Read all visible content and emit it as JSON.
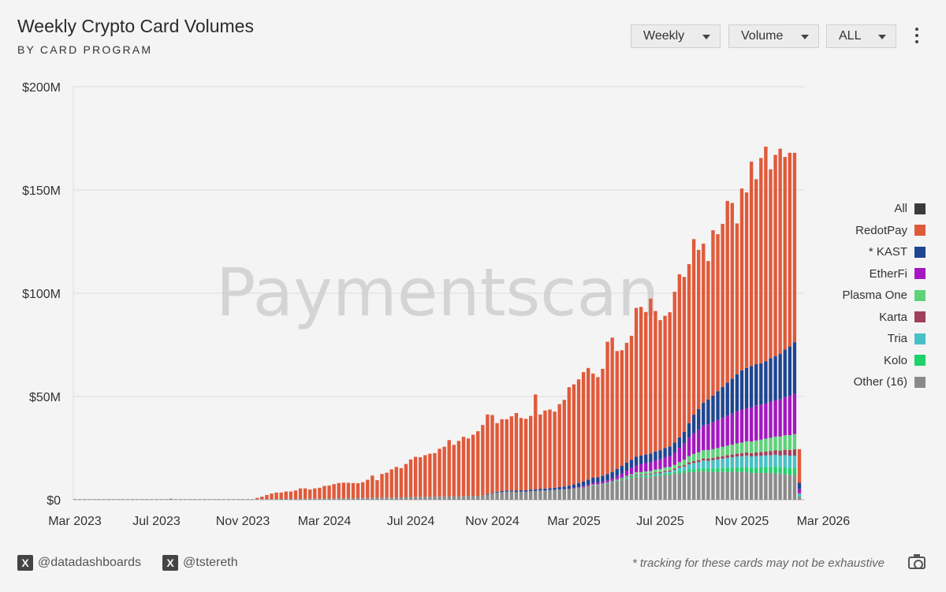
{
  "header": {
    "title": "Weekly Crypto Card Volumes",
    "subtitle": "BY CARD PROGRAM"
  },
  "controls": {
    "interval": "Weekly",
    "metric": "Volume",
    "range": "ALL"
  },
  "watermark": "Paymentscan",
  "footer": {
    "handle1": "@datadashboards",
    "handle2": "@tstereth",
    "note": "* tracking for these cards may not be exhaustive"
  },
  "chart_data": {
    "type": "bar",
    "stacked": true,
    "title": "Weekly Crypto Card Volumes",
    "subtitle": "BY CARD PROGRAM",
    "xlabel": "",
    "ylabel": "",
    "ylim": [
      0,
      200
    ],
    "y_unit": "$M",
    "yticks": [
      0,
      50,
      100,
      150,
      200
    ],
    "ytick_labels": [
      "$0",
      "$50M",
      "$100M",
      "$150M",
      "$200M"
    ],
    "xtick_labels": [
      "Mar 2023",
      "Jul 2023",
      "Nov 2023",
      "Mar 2024",
      "Jul 2024",
      "Nov 2024",
      "Mar 2025",
      "Jul 2025",
      "Nov 2025",
      "Mar 2026"
    ],
    "xtick_week_index": [
      0,
      17,
      35,
      52,
      70,
      87,
      104,
      122,
      139,
      156
    ],
    "grid": "horizontal",
    "legend_position": "right",
    "legend": [
      {
        "name": "All",
        "color": "#3a3a3a"
      },
      {
        "name": "RedotPay",
        "color": "#e05a3a"
      },
      {
        "name": "* KAST",
        "color": "#1f4591"
      },
      {
        "name": "EtherFi",
        "color": "#a417c0"
      },
      {
        "name": "Plasma One",
        "color": "#5fd27a"
      },
      {
        "name": "Karta",
        "color": "#a0405a"
      },
      {
        "name": "Tria",
        "color": "#47c1c6"
      },
      {
        "name": "Kolo",
        "color": "#1ed16a"
      },
      {
        "name": "Other (16)",
        "color": "#8a8a8a"
      }
    ],
    "series_order": [
      "Other (16)",
      "Kolo",
      "Tria",
      "Karta",
      "Plasma One",
      "EtherFi",
      "* KAST",
      "RedotPay"
    ],
    "series_colors": [
      "#8a8a8a",
      "#1ed16a",
      "#47c1c6",
      "#a0405a",
      "#5fd27a",
      "#a417c0",
      "#1f4591",
      "#e05a3a"
    ],
    "weeks": [
      [
        0.3,
        0,
        0,
        0,
        0,
        0,
        0,
        0
      ],
      [
        0.3,
        0,
        0,
        0,
        0,
        0,
        0,
        0
      ],
      [
        0.3,
        0,
        0,
        0,
        0,
        0,
        0,
        0
      ],
      [
        0.3,
        0,
        0,
        0,
        0,
        0,
        0,
        0
      ],
      [
        0.3,
        0,
        0,
        0,
        0,
        0,
        0,
        0
      ],
      [
        0.3,
        0,
        0,
        0,
        0,
        0,
        0,
        0
      ],
      [
        0.3,
        0,
        0,
        0,
        0,
        0,
        0,
        0
      ],
      [
        0.3,
        0,
        0,
        0,
        0,
        0,
        0,
        0
      ],
      [
        0.3,
        0,
        0,
        0,
        0,
        0,
        0,
        0
      ],
      [
        0.3,
        0,
        0,
        0,
        0,
        0,
        0,
        0
      ],
      [
        0.3,
        0,
        0,
        0,
        0,
        0,
        0,
        0
      ],
      [
        0.3,
        0,
        0,
        0,
        0,
        0,
        0,
        0
      ],
      [
        0.3,
        0,
        0,
        0,
        0,
        0,
        0,
        0
      ],
      [
        0.3,
        0,
        0,
        0,
        0,
        0,
        0,
        0
      ],
      [
        0.3,
        0,
        0,
        0,
        0,
        0,
        0,
        0
      ],
      [
        0.3,
        0,
        0,
        0,
        0,
        0,
        0,
        0
      ],
      [
        0.3,
        0,
        0,
        0,
        0,
        0,
        0,
        0
      ],
      [
        0.3,
        0,
        0,
        0,
        0,
        0,
        0,
        0
      ],
      [
        0.3,
        0,
        0,
        0,
        0,
        0,
        0,
        0
      ],
      [
        0.3,
        0,
        0,
        0,
        0,
        0,
        0,
        0
      ],
      [
        0.5,
        0,
        0,
        0,
        0,
        0,
        0,
        0
      ],
      [
        0.3,
        0,
        0,
        0,
        0,
        0,
        0,
        0
      ],
      [
        0.3,
        0,
        0,
        0,
        0,
        0,
        0,
        0
      ],
      [
        0.3,
        0,
        0,
        0,
        0,
        0,
        0,
        0
      ],
      [
        0.3,
        0,
        0,
        0,
        0,
        0,
        0,
        0
      ],
      [
        0.3,
        0,
        0,
        0,
        0,
        0,
        0,
        0
      ],
      [
        0.3,
        0,
        0,
        0,
        0,
        0,
        0,
        0
      ],
      [
        0.3,
        0,
        0,
        0,
        0,
        0,
        0,
        0
      ],
      [
        0.3,
        0,
        0,
        0,
        0,
        0,
        0,
        0
      ],
      [
        0.3,
        0,
        0,
        0,
        0,
        0,
        0,
        0
      ],
      [
        0.3,
        0,
        0,
        0,
        0,
        0,
        0,
        0
      ],
      [
        0.3,
        0,
        0,
        0,
        0,
        0,
        0,
        0
      ],
      [
        0.3,
        0,
        0,
        0,
        0,
        0,
        0,
        0
      ],
      [
        0.3,
        0,
        0,
        0,
        0,
        0,
        0,
        0
      ],
      [
        0.3,
        0,
        0,
        0,
        0,
        0,
        0,
        0
      ],
      [
        0.3,
        0,
        0,
        0,
        0,
        0,
        0,
        0
      ],
      [
        0.3,
        0,
        0,
        0,
        0,
        0,
        0,
        0
      ],
      [
        0.3,
        0,
        0,
        0,
        0,
        0,
        0,
        0
      ],
      [
        0.3,
        0,
        0,
        0,
        0,
        0,
        0,
        0.6
      ],
      [
        0.3,
        0,
        0,
        0,
        0,
        0,
        0,
        1.2
      ],
      [
        0.3,
        0,
        0,
        0,
        0,
        0,
        0,
        2.0
      ],
      [
        0.3,
        0,
        0,
        0,
        0,
        0,
        0,
        2.7
      ],
      [
        0.3,
        0,
        0,
        0,
        0,
        0,
        0,
        3.2
      ],
      [
        0.4,
        0,
        0,
        0,
        0,
        0,
        0,
        3.1
      ],
      [
        0.4,
        0,
        0,
        0,
        0,
        0,
        0,
        3.6
      ],
      [
        0.4,
        0,
        0,
        0,
        0,
        0,
        0,
        3.6
      ],
      [
        0.4,
        0,
        0,
        0,
        0,
        0,
        0,
        4.1
      ],
      [
        0.4,
        0,
        0,
        0,
        0,
        0,
        0,
        5.1
      ],
      [
        0.5,
        0,
        0,
        0,
        0,
        0,
        0,
        5.0
      ],
      [
        0.5,
        0,
        0,
        0,
        0,
        0,
        0,
        4.5
      ],
      [
        0.5,
        0,
        0,
        0,
        0,
        0,
        0,
        5.0
      ],
      [
        0.6,
        0,
        0,
        0,
        0,
        0,
        0,
        5.2
      ],
      [
        0.6,
        0,
        0,
        0,
        0,
        0,
        0,
        6.1
      ],
      [
        0.6,
        0,
        0,
        0,
        0,
        0,
        0,
        6.3
      ],
      [
        0.7,
        0,
        0,
        0,
        0,
        0,
        0,
        6.9
      ],
      [
        0.7,
        0,
        0,
        0,
        0,
        0,
        0,
        7.4
      ],
      [
        0.8,
        0,
        0,
        0,
        0,
        0,
        0,
        7.5
      ],
      [
        0.8,
        0,
        0,
        0,
        0,
        0,
        0,
        7.4
      ],
      [
        0.8,
        0,
        0,
        0,
        0,
        0,
        0,
        7.3
      ],
      [
        0.8,
        0,
        0,
        0,
        0,
        0,
        0,
        7.2
      ],
      [
        0.9,
        0,
        0,
        0,
        0,
        0,
        0,
        7.6
      ],
      [
        0.9,
        0,
        0,
        0,
        0,
        0,
        0,
        8.8
      ],
      [
        1.0,
        0,
        0,
        0,
        0,
        0,
        0,
        10.7
      ],
      [
        1.0,
        0,
        0,
        0,
        0,
        0,
        0,
        8.5
      ],
      [
        1.0,
        0,
        0,
        0,
        0,
        0,
        0,
        11.5
      ],
      [
        1.0,
        0,
        0,
        0,
        0,
        0,
        0,
        12.1
      ],
      [
        1.1,
        0,
        0,
        0,
        0,
        0,
        0,
        13.6
      ],
      [
        1.1,
        0,
        0,
        0,
        0,
        0,
        0,
        14.8
      ],
      [
        1.2,
        0,
        0,
        0,
        0,
        0,
        0,
        14.1
      ],
      [
        1.3,
        0,
        0,
        0,
        0,
        0,
        0,
        16.0
      ],
      [
        1.3,
        0,
        0,
        0,
        0,
        0,
        0,
        18.2
      ],
      [
        1.4,
        0,
        0,
        0,
        0,
        0,
        0,
        19.4
      ],
      [
        1.4,
        0,
        0,
        0,
        0,
        0,
        0,
        19.2
      ],
      [
        1.5,
        0,
        0,
        0,
        0,
        0,
        0,
        20.1
      ],
      [
        1.5,
        0,
        0,
        0,
        0,
        0,
        0,
        20.8
      ],
      [
        1.5,
        0,
        0,
        0,
        0,
        0,
        0,
        21.1
      ],
      [
        1.6,
        0,
        0,
        0,
        0,
        0,
        0,
        23.1
      ],
      [
        1.6,
        0,
        0,
        0,
        0,
        0,
        0,
        24.1
      ],
      [
        1.7,
        0,
        0,
        0,
        0,
        0,
        0,
        27.2
      ],
      [
        1.7,
        0,
        0,
        0,
        0,
        0,
        0,
        24.9
      ],
      [
        1.7,
        0,
        0,
        0,
        0,
        0,
        0,
        26.8
      ],
      [
        1.8,
        0,
        0,
        0,
        0,
        0,
        0,
        28.7
      ],
      [
        1.8,
        0,
        0,
        0,
        0,
        0,
        0,
        27.9
      ],
      [
        1.9,
        0,
        0,
        0,
        0,
        0,
        0,
        29.6
      ],
      [
        1.9,
        0,
        0,
        0,
        0,
        0,
        0,
        31.3
      ],
      [
        2.0,
        0,
        0,
        0,
        0,
        0,
        0,
        34.2
      ],
      [
        2.5,
        0,
        0,
        0,
        0,
        0,
        0.3,
        38.5
      ],
      [
        3.0,
        0,
        0,
        0,
        0,
        0,
        0.3,
        37.7
      ],
      [
        3.5,
        0,
        0,
        0,
        0,
        0,
        0.4,
        33.2
      ],
      [
        3.7,
        0,
        0,
        0,
        0,
        0,
        0.5,
        34.8
      ],
      [
        4.0,
        0,
        0,
        0,
        0,
        0,
        0.5,
        34.5
      ],
      [
        4.0,
        0,
        0,
        0,
        0,
        0,
        0.5,
        35.9
      ],
      [
        3.8,
        0,
        0,
        0,
        0,
        0,
        0.6,
        37.6
      ],
      [
        4.0,
        0,
        0,
        0,
        0,
        0,
        0.6,
        35.0
      ],
      [
        4.0,
        0,
        0,
        0,
        0,
        0,
        0.7,
        34.5
      ],
      [
        4.2,
        0,
        0,
        0,
        0,
        0,
        0.7,
        35.7
      ],
      [
        4.3,
        0,
        0,
        0,
        0,
        0,
        0.8,
        45.9
      ],
      [
        4.5,
        0,
        0,
        0,
        0,
        0,
        0.8,
        36.0
      ],
      [
        4.5,
        0,
        0,
        0,
        0,
        0,
        0.9,
        37.8
      ],
      [
        4.7,
        0,
        0,
        0,
        0,
        0,
        0.9,
        38.1
      ],
      [
        4.8,
        0,
        0,
        0,
        0,
        0,
        1.0,
        36.9
      ],
      [
        5.0,
        0,
        0,
        0,
        0,
        0,
        1.1,
        40.2
      ],
      [
        5.0,
        0.1,
        0,
        0,
        0,
        0.1,
        1.2,
        42.0
      ],
      [
        5.2,
        0.1,
        0,
        0.1,
        0,
        0.1,
        1.3,
        47.7
      ],
      [
        5.5,
        0.1,
        0,
        0.1,
        0,
        0.2,
        1.5,
        48.5
      ],
      [
        5.8,
        0.1,
        0,
        0.1,
        0,
        0.3,
        1.8,
        50.2
      ],
      [
        6.0,
        0.1,
        0,
        0.1,
        0,
        0.5,
        2.1,
        53.0
      ],
      [
        6.5,
        0.2,
        0,
        0.1,
        0,
        0.6,
        2.4,
        54.0
      ],
      [
        7.0,
        0.2,
        0.1,
        0.2,
        0,
        0.7,
        2.5,
        50.4
      ],
      [
        7.0,
        0.2,
        0.1,
        0.2,
        0,
        0.8,
        2.6,
        48.5
      ],
      [
        7.5,
        0.2,
        0.1,
        0.2,
        0,
        0.8,
        2.8,
        51.8
      ],
      [
        8.0,
        0.3,
        0.1,
        0.2,
        0,
        0.9,
        3.0,
        64.0
      ],
      [
        8.5,
        0.3,
        0.1,
        0.3,
        0,
        1.0,
        3.3,
        65.0
      ],
      [
        9.0,
        0.3,
        0.2,
        0.3,
        0.2,
        1.5,
        3.5,
        57.0
      ],
      [
        9.5,
        0.3,
        0.2,
        0.3,
        0.4,
        2.0,
        3.7,
        56.0
      ],
      [
        10.0,
        0.4,
        0.3,
        0.3,
        0.6,
        2.5,
        3.9,
        58.0
      ],
      [
        10.5,
        0.4,
        0.3,
        0.4,
        0.8,
        3.0,
        4.0,
        60.0
      ],
      [
        11.0,
        0.5,
        0.4,
        0.4,
        1.0,
        3.5,
        4.1,
        72.0
      ],
      [
        11.0,
        0.5,
        0.4,
        0.4,
        1.1,
        3.8,
        4.2,
        72.0
      ],
      [
        11.0,
        0.5,
        0.5,
        0.5,
        1.2,
        4.0,
        4.2,
        69.0
      ],
      [
        11.0,
        0.6,
        0.5,
        0.5,
        1.3,
        4.2,
        4.3,
        75.0
      ],
      [
        11.5,
        0.6,
        0.6,
        0.5,
        1.4,
        4.5,
        4.3,
        68.0
      ],
      [
        11.5,
        0.7,
        0.6,
        0.6,
        1.5,
        4.7,
        4.4,
        63.0
      ],
      [
        12.0,
        0.7,
        0.7,
        0.6,
        1.6,
        5.0,
        4.5,
        64.0
      ],
      [
        12.0,
        0.8,
        0.8,
        0.6,
        1.7,
        5.3,
        4.6,
        65.0
      ],
      [
        12.5,
        0.9,
        1.0,
        0.7,
        1.8,
        6.0,
        4.8,
        73.0
      ],
      [
        13.0,
        1.0,
        1.5,
        0.7,
        2.0,
        7.0,
        5.0,
        79.0
      ],
      [
        13.0,
        1.1,
        2.0,
        0.8,
        2.5,
        8.0,
        5.5,
        75.0
      ],
      [
        13.5,
        1.2,
        2.5,
        0.9,
        3.0,
        9.0,
        7.0,
        77.0
      ],
      [
        13.5,
        1.3,
        3.0,
        0.9,
        3.5,
        10.0,
        9.0,
        85.0
      ],
      [
        13.5,
        1.4,
        3.3,
        1.0,
        3.8,
        11.0,
        10.0,
        77.0
      ],
      [
        14.0,
        1.5,
        3.5,
        1.0,
        4.0,
        12.0,
        11.0,
        77.0
      ],
      [
        13.5,
        1.6,
        3.8,
        1.1,
        4.1,
        12.5,
        12.0,
        67.0
      ],
      [
        13.5,
        1.7,
        4.0,
        1.1,
        4.2,
        13.0,
        13.0,
        80.0
      ],
      [
        13.5,
        1.8,
        4.3,
        1.2,
        4.3,
        13.5,
        14.0,
        76.0
      ],
      [
        13.5,
        1.9,
        4.5,
        1.2,
        4.5,
        14.0,
        15.0,
        79.0
      ],
      [
        13.5,
        2.0,
        4.8,
        1.3,
        4.6,
        14.5,
        16.0,
        88.0
      ],
      [
        13.5,
        2.1,
        5.0,
        1.3,
        4.8,
        15.0,
        17.0,
        85.0
      ],
      [
        13.5,
        2.2,
        5.2,
        1.4,
        5.0,
        15.5,
        18.0,
        73.0
      ],
      [
        13.5,
        2.3,
        5.3,
        1.4,
        5.2,
        16.0,
        19.0,
        88.0
      ],
      [
        13.5,
        2.4,
        5.5,
        1.5,
        5.4,
        16.0,
        19.5,
        85.0
      ],
      [
        13.0,
        2.5,
        5.5,
        1.6,
        5.6,
        16.5,
        20.0,
        99.0
      ],
      [
        13.0,
        2.6,
        5.6,
        1.7,
        5.8,
        17.0,
        20.0,
        89.5
      ],
      [
        13.0,
        2.7,
        5.6,
        1.8,
        6.0,
        17.0,
        20.0,
        99.4
      ],
      [
        13.0,
        2.8,
        5.7,
        1.9,
        6.2,
        17.0,
        20.5,
        103.9
      ],
      [
        13.0,
        2.9,
        5.7,
        2.0,
        6.4,
        17.5,
        21.0,
        91.5
      ],
      [
        13.0,
        3.0,
        5.8,
        2.2,
        6.6,
        17.5,
        21.5,
        97.4
      ],
      [
        12.5,
        3.1,
        5.8,
        2.4,
        6.8,
        18.0,
        22.0,
        99.4
      ],
      [
        12.5,
        3.2,
        5.9,
        2.6,
        7.0,
        18.5,
        23.0,
        93.3
      ],
      [
        12.0,
        3.3,
        6.0,
        2.8,
        7.2,
        19.0,
        24.0,
        93.7
      ],
      [
        12.0,
        3.4,
        6.0,
        3.0,
        7.4,
        19.5,
        25.0,
        91.7
      ],
      [
        1.5,
        0.2,
        1.0,
        0.3,
        0.2,
        2.0,
        3.0,
        16.3
      ]
    ]
  }
}
